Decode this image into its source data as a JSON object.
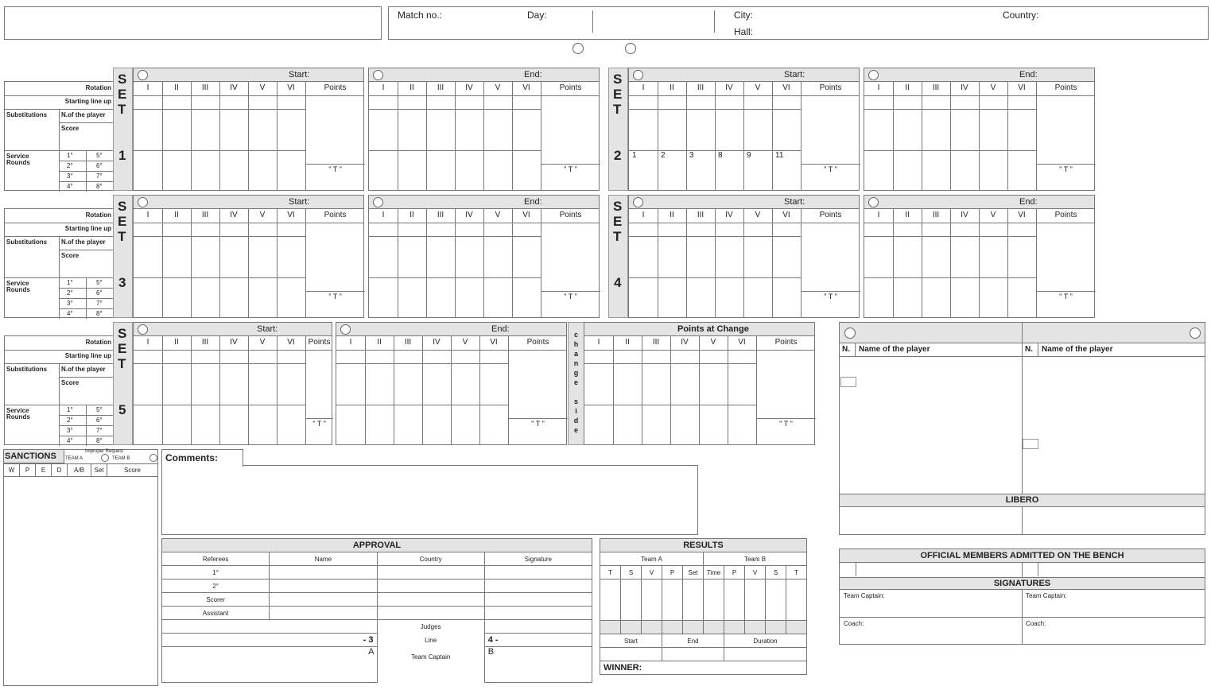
{
  "header": {
    "match_no_label": "Match no.:",
    "day_label": "Day:",
    "city_label": "City:",
    "hall_label": "Hall:",
    "country_label": "Country:"
  },
  "set_word": [
    "S",
    "E",
    "T"
  ],
  "sets": [
    {
      "number": "1",
      "start_label": "Start:",
      "end_label": "End:"
    },
    {
      "number": "2",
      "start_label": "Start:",
      "end_label": "End:",
      "service_values": [
        "1",
        "2",
        "3",
        "8",
        "9",
        "11"
      ]
    },
    {
      "number": "3",
      "start_label": "Start:",
      "end_label": "End:"
    },
    {
      "number": "4",
      "start_label": "Start:",
      "end_label": "End:"
    },
    {
      "number": "5",
      "start_label": "Start:",
      "end_label": "End:",
      "change_side_letters": [
        "c",
        "h",
        "a",
        "n",
        "g",
        "e",
        "",
        "s",
        "i",
        "d",
        "e"
      ],
      "points_at_change_label": "Points at Change"
    }
  ],
  "columns": [
    "I",
    "II",
    "III",
    "IV",
    "V",
    "VI"
  ],
  "points_label": "Points",
  "t_label": "\" T \"",
  "row_labels": {
    "rotation": "Rotation",
    "starting_lineup": "Starting line up",
    "substitutions": "Substitutions",
    "n_player": "N.of the player",
    "score": "Score",
    "service_rounds": "Service Rounds",
    "rounds": [
      "1°",
      "5°",
      "2°",
      "6°",
      "3°",
      "7°",
      "4°",
      "8°"
    ]
  },
  "sanctions": {
    "title": "SANCTIONS",
    "improper_request": "Improper Request",
    "team_a": "TEAM A",
    "team_b": "TEAM B",
    "columns": [
      "W",
      "P",
      "E",
      "D",
      "A/B",
      "Set",
      "Score"
    ]
  },
  "comments": {
    "label": "Comments:"
  },
  "teams": {
    "number_label": "N.",
    "name_label": "Name of the player",
    "libero_label": "LIBERO"
  },
  "officials": {
    "title": "OFFICIAL MEMBERS ADMITTED ON THE BENCH",
    "signatures_title": "SIGNATURES",
    "team_captain": "Team Captain:",
    "coach": "Coach:"
  },
  "approval": {
    "title": "APPROVAL",
    "headers": [
      "Referees",
      "Name",
      "Country",
      "Signature"
    ],
    "rows": [
      "1°",
      "2°",
      "Scorer",
      "Assistant"
    ],
    "judges": "Judges",
    "line": "Line",
    "line_left": "- 3",
    "line_right": "4 -",
    "team_captain": "Team Captain",
    "captain_a": "A",
    "captain_b": "B"
  },
  "results": {
    "title": "RESULTS",
    "team_a": "Team A",
    "team_b": "Team B",
    "columns": [
      "T",
      "S",
      "V",
      "P",
      "Set",
      "Time",
      "P",
      "V",
      "S",
      "T"
    ],
    "times": [
      "Start",
      "End",
      "Duration"
    ],
    "winner": "WINNER:"
  }
}
